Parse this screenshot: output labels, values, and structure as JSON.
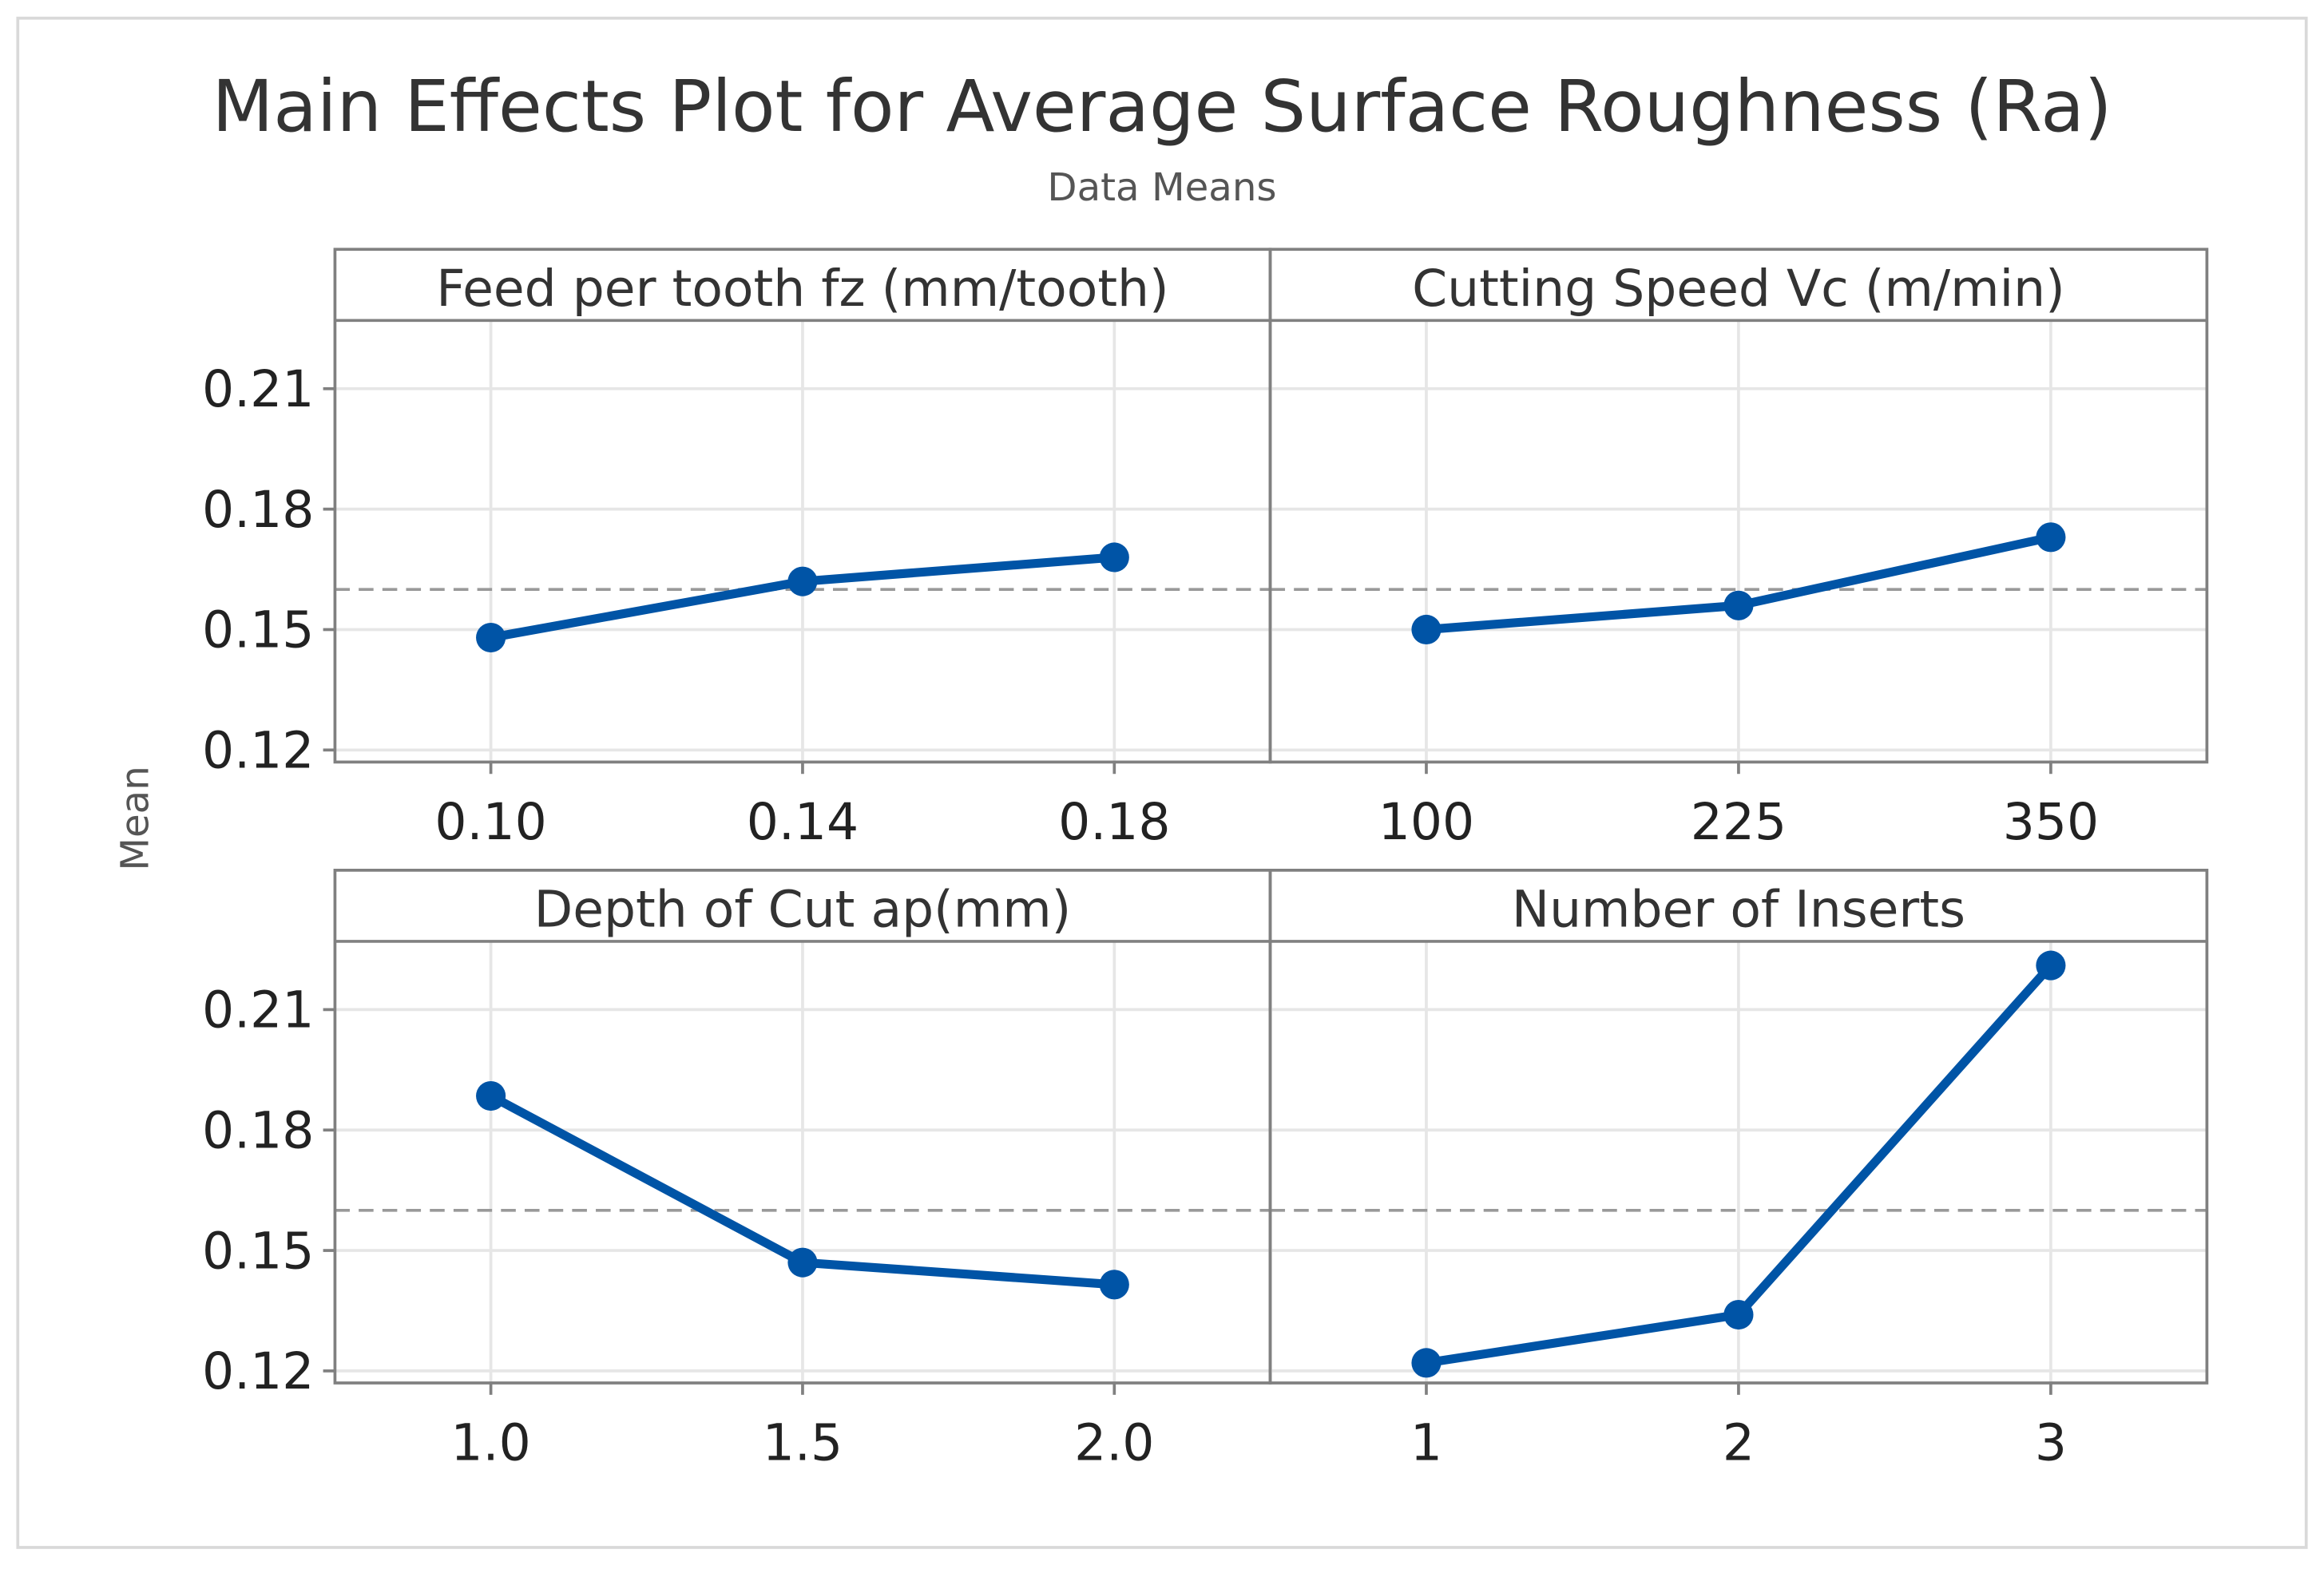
{
  "chart_data": {
    "type": "line",
    "title": "Main Effects Plot for Average Surface Roughness (Ra)",
    "subtitle": "Data Means",
    "ylabel": "Mean",
    "ylim": [
      0.117,
      0.227
    ],
    "yticks": [
      0.12,
      0.15,
      0.18,
      0.21
    ],
    "ytick_labels": [
      "0.12",
      "0.15",
      "0.18",
      "0.21"
    ],
    "overall_mean": 0.16,
    "grid": true,
    "colors": {
      "line": "#0054a6",
      "grid": "#e6e6e6",
      "frame": "#808080",
      "mean_line": "#999999",
      "text": "#333333"
    },
    "panels": [
      {
        "title": "Feed per tooth fz (mm/tooth)",
        "categories": [
          "0.10",
          "0.14",
          "0.18"
        ],
        "values": [
          0.148,
          0.162,
          0.168
        ]
      },
      {
        "title": "Cutting Speed Vc (m/min)",
        "categories": [
          "100",
          "225",
          "350"
        ],
        "values": [
          0.15,
          0.156,
          0.173
        ]
      },
      {
        "title": "Depth of Cut ap(mm)",
        "categories": [
          "1.0",
          "1.5",
          "2.0"
        ],
        "values": [
          0.1885,
          0.147,
          0.1415
        ]
      },
      {
        "title": "Number of Inserts",
        "categories": [
          "1",
          "2",
          "3"
        ],
        "values": [
          0.122,
          0.134,
          0.221
        ]
      }
    ]
  }
}
